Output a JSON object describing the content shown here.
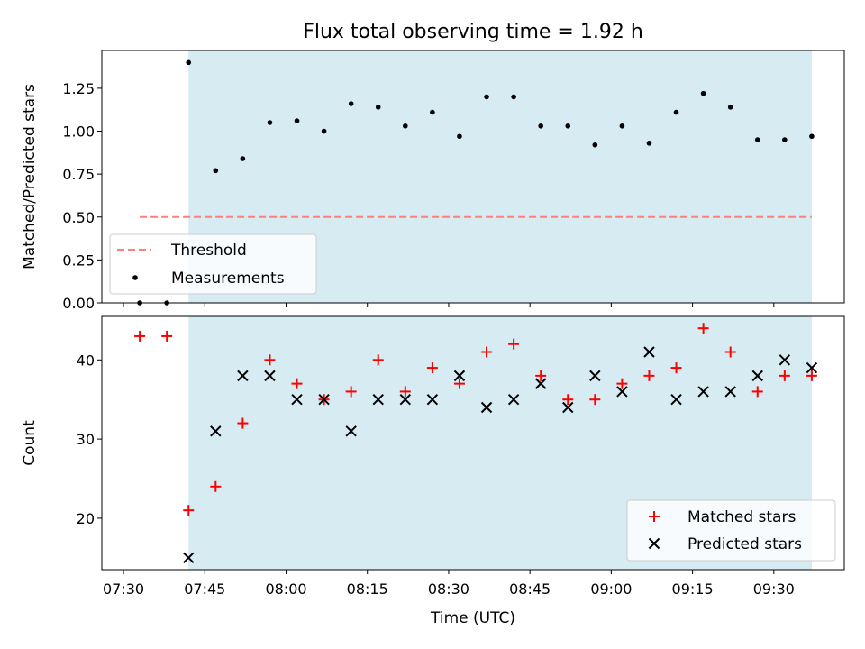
{
  "figure": {
    "title": "Flux total observing time = 1.92 h"
  },
  "chart_data": [
    {
      "type": "scatter",
      "panel": "top",
      "ylabel": "Matched/Predicted stars",
      "ylim": [
        0,
        1.47
      ],
      "yticks": [
        "0.00",
        "0.25",
        "0.50",
        "0.75",
        "1.00",
        "1.25"
      ],
      "xlim": [
        "07:26",
        "09:43"
      ],
      "shaded_region": {
        "from": "07:42",
        "to": "09:37",
        "color": "#add8e6"
      },
      "grid": false,
      "legend_position": "lower-left",
      "series": [
        {
          "name": "Threshold",
          "kind": "line",
          "style": "dashed",
          "color": "#ff7f7f",
          "x": [
            "07:33",
            "09:37"
          ],
          "y": [
            0.5,
            0.5
          ]
        },
        {
          "name": "Measurements",
          "kind": "points",
          "color": "#000000",
          "x": [
            "07:33",
            "07:38",
            "07:42",
            "07:47",
            "07:52",
            "07:57",
            "08:02",
            "08:07",
            "08:12",
            "08:17",
            "08:22",
            "08:27",
            "08:32",
            "08:37",
            "08:42",
            "08:47",
            "08:52",
            "08:57",
            "09:02",
            "09:07",
            "09:12",
            "09:17",
            "09:22",
            "09:27",
            "09:32",
            "09:37"
          ],
          "y": [
            0.0,
            0.0,
            1.4,
            0.77,
            0.84,
            1.05,
            1.06,
            1.0,
            1.16,
            1.14,
            1.03,
            1.11,
            0.97,
            1.2,
            1.2,
            1.03,
            1.03,
            0.92,
            1.03,
            0.93,
            1.11,
            1.22,
            1.14,
            0.95,
            0.95,
            0.97
          ]
        }
      ]
    },
    {
      "type": "scatter",
      "panel": "bottom",
      "xlabel": "Time (UTC)",
      "ylabel": "Count",
      "ylim": [
        13.5,
        45.5
      ],
      "yticks": [
        "20",
        "30",
        "40"
      ],
      "xlim": [
        "07:26",
        "09:43"
      ],
      "xticks": [
        "07:30",
        "07:45",
        "08:00",
        "08:15",
        "08:30",
        "08:45",
        "09:00",
        "09:15",
        "09:30"
      ],
      "shaded_region": {
        "from": "07:42",
        "to": "09:37",
        "color": "#add8e6"
      },
      "grid": false,
      "legend_position": "lower-right",
      "series": [
        {
          "name": "Matched stars",
          "marker": "plus",
          "color": "#ff0000",
          "x": [
            "07:33",
            "07:38",
            "07:42",
            "07:47",
            "07:52",
            "07:57",
            "08:02",
            "08:07",
            "08:12",
            "08:17",
            "08:22",
            "08:27",
            "08:32",
            "08:37",
            "08:42",
            "08:47",
            "08:52",
            "08:57",
            "09:02",
            "09:07",
            "09:12",
            "09:17",
            "09:22",
            "09:27",
            "09:32",
            "09:37"
          ],
          "y": [
            43,
            43,
            21,
            24,
            32,
            40,
            37,
            35,
            36,
            40,
            36,
            39,
            37,
            41,
            42,
            38,
            35,
            35,
            37,
            38,
            39,
            44,
            41,
            36,
            38,
            38
          ]
        },
        {
          "name": "Predicted stars",
          "marker": "x",
          "color": "#000000",
          "x": [
            "07:42",
            "07:47",
            "07:52",
            "07:57",
            "08:02",
            "08:07",
            "08:12",
            "08:17",
            "08:22",
            "08:27",
            "08:32",
            "08:37",
            "08:42",
            "08:47",
            "08:52",
            "08:57",
            "09:02",
            "09:07",
            "09:12",
            "09:17",
            "09:22",
            "09:27",
            "09:32",
            "09:37"
          ],
          "y": [
            15,
            31,
            38,
            38,
            35,
            35,
            31,
            35,
            35,
            35,
            38,
            34,
            35,
            37,
            34,
            38,
            36,
            41,
            35,
            36,
            36,
            38,
            40,
            39
          ]
        }
      ]
    }
  ]
}
